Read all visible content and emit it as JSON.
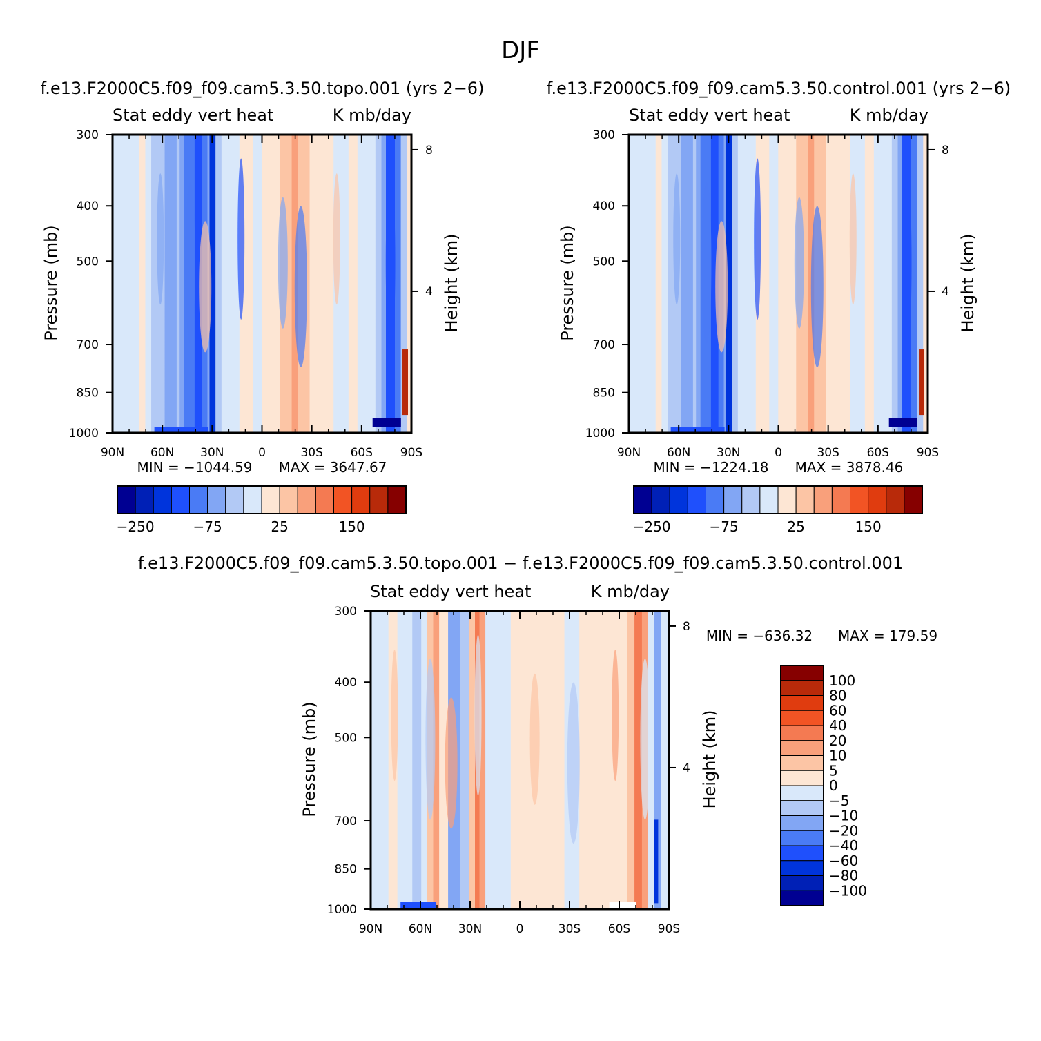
{
  "page": {
    "title": "DJF"
  },
  "colors": {
    "topo_cbar": [
      "#000092",
      "#0020b6",
      "#0034dc",
      "#1f50fc",
      "#4a7bf5",
      "#82a6f4",
      "#b2c9f5",
      "#d9e8fa",
      "#fde6d4",
      "#fcc5a5",
      "#f9a07b",
      "#f47a52",
      "#f25424",
      "#e03c0f",
      "#b82a0a",
      "#860000"
    ],
    "diff_cbar": [
      "#000092",
      "#0020b6",
      "#0034dc",
      "#1f50fc",
      "#4a7bf5",
      "#82a6f4",
      "#b2c9f5",
      "#d9e8fa",
      "#fde6d4",
      "#fcc5a5",
      "#f9a07b",
      "#f47a52",
      "#f25424",
      "#e03c0f",
      "#b82a0a",
      "#860000"
    ]
  },
  "chart_data": [
    {
      "type": "heatmap",
      "title": "f.e13.F2000C5.f09_f09.cam5.3.50.topo.001  (yrs 2−6)",
      "left_string": "Stat  eddy  vert  heat",
      "right_string": "K  mb/day",
      "ylabel": "Pressure  (mb)",
      "y2label": "Height  (km)",
      "xticks": [
        "90N",
        "60N",
        "30N",
        "0",
        "30S",
        "60S",
        "90S"
      ],
      "yticks": [
        "300",
        "400",
        "500",
        "700",
        "850",
        "1000"
      ],
      "y2ticks": [
        "8",
        "4"
      ],
      "ylim": [
        1000,
        300
      ],
      "min_label": "MIN  =  −1044.59",
      "max_label": "MAX  =  3647.67",
      "min": -1044.59,
      "max": 3647.67,
      "colorbar_labels": [
        "−250",
        "−75",
        "25",
        "150"
      ]
    },
    {
      "type": "heatmap",
      "title": "f.e13.F2000C5.f09_f09.cam5.3.50.control.001  (yrs 2−6)",
      "left_string": "Stat  eddy  vert  heat",
      "right_string": "K  mb/day",
      "ylabel": "Pressure  (mb)",
      "y2label": "Height  (km)",
      "xticks": [
        "90N",
        "60N",
        "30N",
        "0",
        "30S",
        "60S",
        "90S"
      ],
      "yticks": [
        "300",
        "400",
        "500",
        "700",
        "850",
        "1000"
      ],
      "y2ticks": [
        "8",
        "4"
      ],
      "ylim": [
        1000,
        300
      ],
      "min_label": "MIN  =  −1224.18",
      "max_label": "MAX  =  3878.46",
      "min": -1224.18,
      "max": 3878.46,
      "colorbar_labels": [
        "−250",
        "−75",
        "25",
        "150"
      ]
    },
    {
      "type": "heatmap",
      "title": "f.e13.F2000C5.f09_f09.cam5.3.50.topo.001  −  f.e13.F2000C5.f09_f09.cam5.3.50.control.001",
      "left_string": "Stat  eddy  vert  heat",
      "right_string": "K  mb/day",
      "ylabel": "Pressure  (mb)",
      "y2label": "Height  (km)",
      "xticks": [
        "90N",
        "60N",
        "30N",
        "0",
        "30S",
        "60S",
        "90S"
      ],
      "yticks": [
        "300",
        "400",
        "500",
        "700",
        "850",
        "1000"
      ],
      "y2ticks": [
        "8",
        "4"
      ],
      "ylim": [
        1000,
        300
      ],
      "min_label": "MIN  =  −636.32",
      "max_label": "MAX  =  179.59",
      "min": -636.32,
      "max": 179.59,
      "colorbar_labels": [
        "100",
        "80",
        "60",
        "40",
        "20",
        "10",
        "5",
        "0",
        "−5",
        "−10",
        "−20",
        "−40",
        "−60",
        "−80",
        "−100"
      ]
    }
  ]
}
